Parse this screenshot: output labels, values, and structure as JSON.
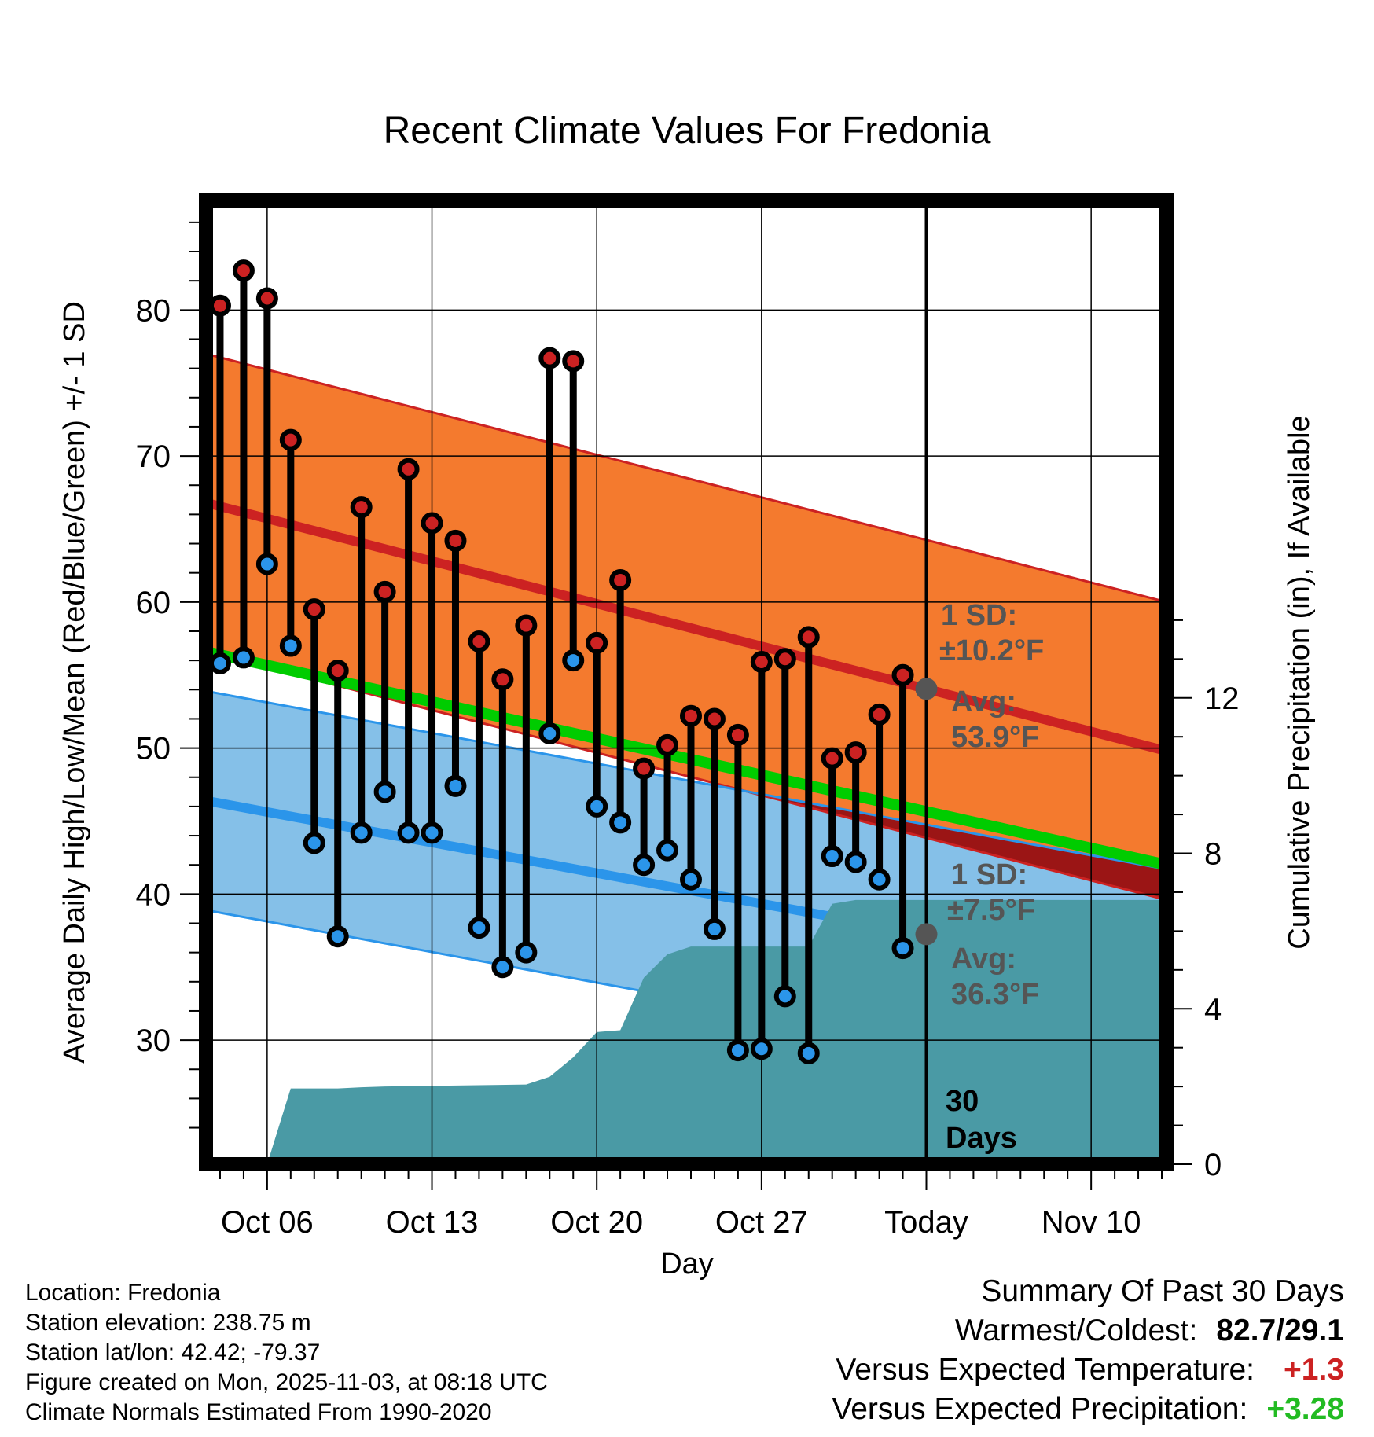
{
  "title": "Recent Climate Values For Fredonia",
  "chart_data": {
    "type": "line",
    "title": "Recent Climate Values For Fredonia",
    "xlabel": "Day",
    "ylabel": "Average Daily High/Low/Mean (Red/Blue/Green) +/- 1 SD",
    "ylabel_right": "Cumulative Precipitation (in), If Available",
    "ylim": [
      21.5,
      87.5
    ],
    "ylim_right": [
      0,
      24.8
    ],
    "xlim": [
      -1.6,
      39.2
    ],
    "x_ticks": [
      {
        "x": 1,
        "label": "Oct 06"
      },
      {
        "x": 8,
        "label": "Oct 13"
      },
      {
        "x": 15,
        "label": "Oct 20"
      },
      {
        "x": 22,
        "label": "Oct 27"
      },
      {
        "x": 29,
        "label": "Today"
      },
      {
        "x": 36,
        "label": "Nov 10"
      }
    ],
    "y_ticks": [
      30,
      40,
      50,
      60,
      70,
      80
    ],
    "y_ticks_right": [
      0,
      4,
      8,
      12
    ],
    "days": [
      {
        "x": -1,
        "high": 80.3,
        "low": 55.8
      },
      {
        "x": 0,
        "high": 82.7,
        "low": 56.2
      },
      {
        "x": 1,
        "high": 80.8,
        "low": 62.6
      },
      {
        "x": 2,
        "high": 71.1,
        "low": 57.0
      },
      {
        "x": 3,
        "high": 59.5,
        "low": 43.5
      },
      {
        "x": 4,
        "high": 55.3,
        "low": 37.1
      },
      {
        "x": 5,
        "high": 66.5,
        "low": 44.2
      },
      {
        "x": 6,
        "high": 60.7,
        "low": 47.0
      },
      {
        "x": 7,
        "high": 69.1,
        "low": 44.2
      },
      {
        "x": 8,
        "high": 65.4,
        "low": 44.2
      },
      {
        "x": 9,
        "high": 64.2,
        "low": 47.4
      },
      {
        "x": 10,
        "high": 57.3,
        "low": 37.7
      },
      {
        "x": 11,
        "high": 54.7,
        "low": 35.0
      },
      {
        "x": 12,
        "high": 58.4,
        "low": 36.0
      },
      {
        "x": 13,
        "high": 76.7,
        "low": 51.0
      },
      {
        "x": 14,
        "high": 76.5,
        "low": 56.0
      },
      {
        "x": 15,
        "high": 57.2,
        "low": 46.0
      },
      {
        "x": 16,
        "high": 61.5,
        "low": 44.9
      },
      {
        "x": 17,
        "high": 48.6,
        "low": 42.0
      },
      {
        "x": 18,
        "high": 50.2,
        "low": 43.0
      },
      {
        "x": 19,
        "high": 52.2,
        "low": 41.0
      },
      {
        "x": 20,
        "high": 52.0,
        "low": 37.6
      },
      {
        "x": 21,
        "high": 50.9,
        "low": 29.3
      },
      {
        "x": 22,
        "high": 55.9,
        "low": 29.4
      },
      {
        "x": 23,
        "high": 56.1,
        "low": 33.0
      },
      {
        "x": 24,
        "high": 57.6,
        "low": 29.1
      },
      {
        "x": 25,
        "high": 49.3,
        "low": 42.6
      },
      {
        "x": 26,
        "high": 49.7,
        "low": 42.2
      },
      {
        "x": 27,
        "high": 52.3,
        "low": 41.0
      },
      {
        "x": 28,
        "high": 55.0,
        "low": 36.3
      }
    ],
    "normals": {
      "high_mean": {
        "start": 66.8,
        "end": 49.8
      },
      "high_sd": 10.2,
      "low_mean": {
        "start": 46.4,
        "end": 34.2
      },
      "low_sd": 7.5,
      "mean": {
        "start": 56.6,
        "end": 42.0
      }
    },
    "cumulative_precip": [
      {
        "x": 1,
        "y": 0.0
      },
      {
        "x": 2,
        "y": 1.95
      },
      {
        "x": 4,
        "y": 1.95
      },
      {
        "x": 5,
        "y": 1.98
      },
      {
        "x": 6,
        "y": 2.0
      },
      {
        "x": 12,
        "y": 2.05
      },
      {
        "x": 13,
        "y": 2.25
      },
      {
        "x": 14,
        "y": 2.75
      },
      {
        "x": 15,
        "y": 3.4
      },
      {
        "x": 16,
        "y": 3.45
      },
      {
        "x": 17,
        "y": 4.8
      },
      {
        "x": 18,
        "y": 5.4
      },
      {
        "x": 19,
        "y": 5.6
      },
      {
        "x": 20,
        "y": 5.6
      },
      {
        "x": 24,
        "y": 5.6
      },
      {
        "x": 25,
        "y": 6.7
      },
      {
        "x": 26,
        "y": 6.8
      },
      {
        "x": 39.2,
        "y": 6.8
      }
    ],
    "today_x": 29,
    "annotations": {
      "high_sd": "±10.2°F",
      "high_avg": "53.9°F",
      "low_sd": "±7.5°F",
      "low_avg": "36.3°F",
      "sd_label": "1 SD:",
      "avg_label": "Avg:",
      "days_count": "30",
      "days_label": "Days"
    }
  },
  "colors": {
    "high": "#cc2222",
    "high_band": "#f47a2e",
    "low": "#2b95ea",
    "low_band": "#85c0e8",
    "mean": "#00cc00",
    "precip": "#4a9aa5",
    "overlap": "#9b1515",
    "positive_temp": "#cc2222",
    "positive_precip": "#22bb22"
  },
  "station": {
    "location": "Location: Fredonia",
    "elevation": "Station elevation: 238.75 m",
    "latlon": "Station lat/lon: 42.42; -79.37",
    "created": "Figure created on Mon, 2025-11-03, at 08:18 UTC",
    "normals": "Climate Normals Estimated From 1990-2020"
  },
  "summary": {
    "heading": "Summary Of Past 30 Days",
    "warmest_coldest_label": "Warmest/Coldest:",
    "warmest_coldest_value": "82.7/29.1",
    "temp_label": "Versus Expected Temperature:",
    "temp_value": "+1.3",
    "precip_label": "Versus Expected Precipitation:",
    "precip_value": "+3.28"
  }
}
